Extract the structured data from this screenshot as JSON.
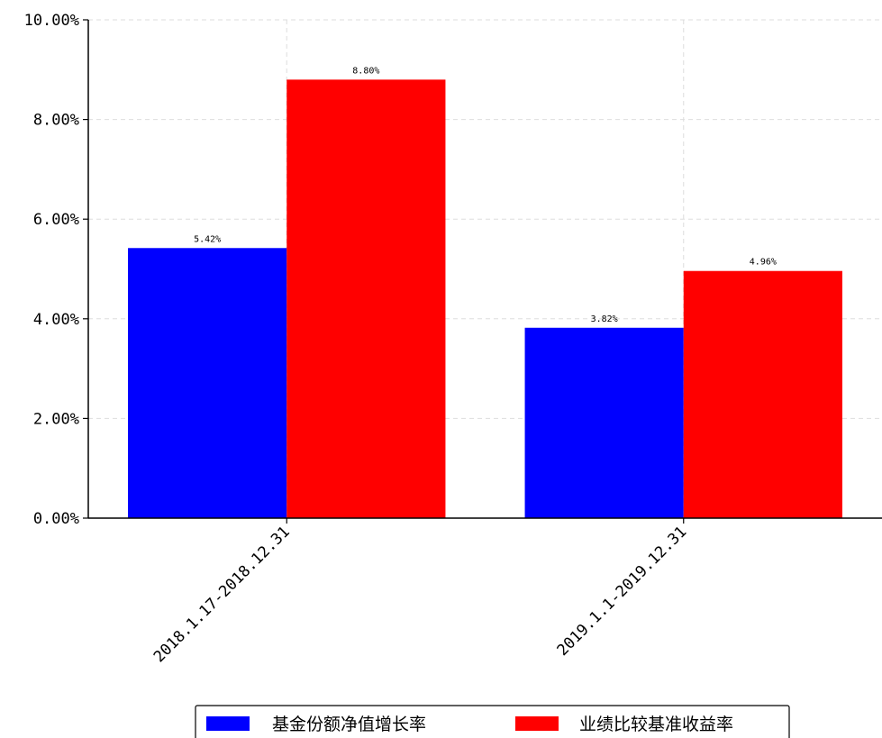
{
  "chart_data": {
    "type": "bar",
    "categories": [
      "2018.1.17-2018.12.31",
      "2019.1.1-2019.12.31"
    ],
    "series": [
      {
        "name": "基金份额净值增长率",
        "values": [
          5.42,
          3.82
        ],
        "color": "#0000ff"
      },
      {
        "name": "业绩比较基准收益率",
        "values": [
          8.8,
          4.96
        ],
        "color": "#ff0000"
      }
    ],
    "data_labels": [
      [
        "5.42%",
        "3.82%"
      ],
      [
        "8.80%",
        "4.96%"
      ]
    ],
    "y_ticks": [
      0,
      2,
      4,
      6,
      8,
      10
    ],
    "y_tick_labels": [
      "0.00%",
      "2.00%",
      "4.00%",
      "6.00%",
      "8.00%",
      "10.00%"
    ],
    "ylim": [
      0,
      10
    ],
    "grid": true,
    "legend_position": "bottom-center",
    "title": "",
    "xlabel": "",
    "ylabel": ""
  }
}
